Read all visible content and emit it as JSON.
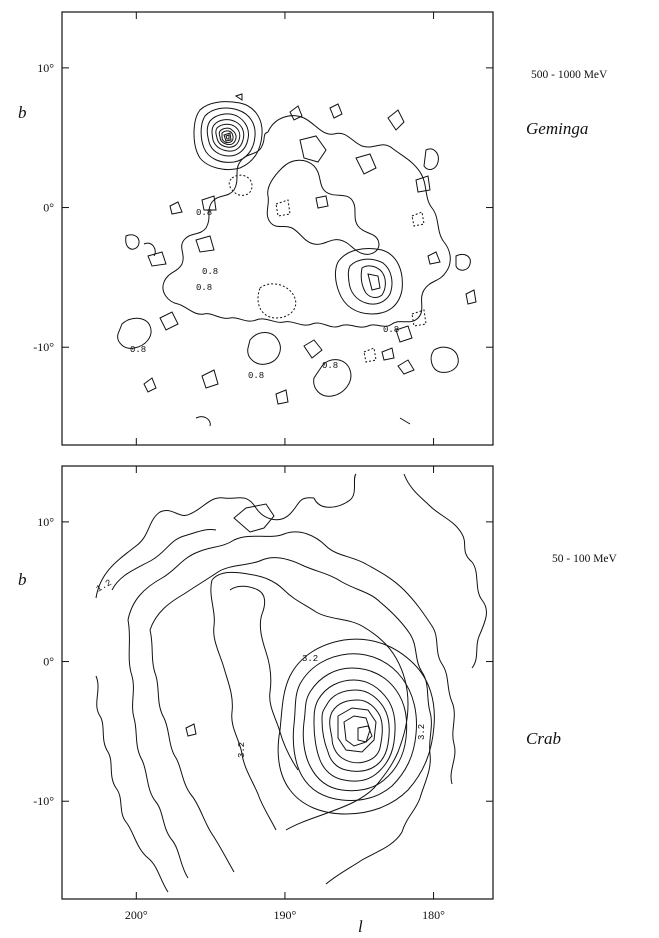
{
  "chart_data": [
    {
      "type": "heatmap",
      "subtype": "contour map",
      "energy_band": "500 - 1000 MeV",
      "source_label": "Geminga",
      "ylabel": "b",
      "xlim": [
        205,
        176
      ],
      "ylim": [
        -17,
        14
      ],
      "y_ticks": [
        10,
        0,
        -10
      ],
      "y_tick_labels": [
        "10°",
        "0°",
        "-10°"
      ],
      "x_ticks": [
        200,
        190,
        180
      ],
      "contour_level_labels": [
        "0.8",
        "0.8",
        "0.8",
        "0.8",
        "0.8",
        "0.8",
        "0.8"
      ],
      "peaks": [
        {
          "name": "Geminga",
          "l": 195.1,
          "b": 4.3,
          "contours": 9
        },
        {
          "name": "",
          "l": 184.6,
          "b": -5.6,
          "contours": 4
        }
      ]
    },
    {
      "type": "heatmap",
      "subtype": "contour map",
      "energy_band": "50 - 100 MeV",
      "source_label": "Crab",
      "ylabel": "b",
      "xlabel": "l",
      "xlim": [
        205,
        176
      ],
      "ylim": [
        -17,
        14
      ],
      "y_ticks": [
        10,
        0,
        -10
      ],
      "y_tick_labels": [
        "10°",
        "0°",
        "-10°"
      ],
      "x_ticks": [
        200,
        190,
        180
      ],
      "x_tick_labels": [
        "200°",
        "190°",
        "180°"
      ],
      "contour_level_labels": [
        "1.2",
        "3.2",
        "3.2",
        "3.2"
      ],
      "peaks": [
        {
          "name": "Crab",
          "l": 184.6,
          "b": -5.8,
          "contours": 9
        }
      ]
    }
  ]
}
